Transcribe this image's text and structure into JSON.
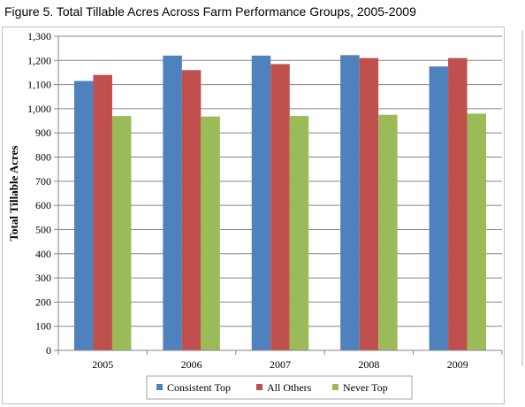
{
  "title": "Figure 5. Total Tillable Acres Across Farm Performance Groups, 2005-2009",
  "chart_data": {
    "type": "bar",
    "title": "",
    "xlabel": "",
    "ylabel": "Total Tillable Acres",
    "categories": [
      "2005",
      "2006",
      "2007",
      "2008",
      "2009"
    ],
    "ylim": [
      0,
      1300
    ],
    "yticks": [
      0,
      100,
      200,
      300,
      400,
      500,
      600,
      700,
      800,
      900,
      1000,
      1100,
      1200,
      1300
    ],
    "ytick_labels": [
      "0",
      "100",
      "200",
      "300",
      "400",
      "500",
      "600",
      "700",
      "800",
      "900",
      "1,000",
      "1,100",
      "1,200",
      "1,300"
    ],
    "grid": "horizontal",
    "legend": "bottom",
    "series": [
      {
        "name": "Consistent Top",
        "color": "#4f81bd",
        "values": [
          1115,
          1220,
          1220,
          1222,
          1175
        ]
      },
      {
        "name": "All Others",
        "color": "#c0504d",
        "values": [
          1140,
          1160,
          1185,
          1210,
          1210
        ]
      },
      {
        "name": "Never Top",
        "color": "#9bbb59",
        "values": [
          970,
          968,
          970,
          975,
          980
        ]
      }
    ]
  }
}
